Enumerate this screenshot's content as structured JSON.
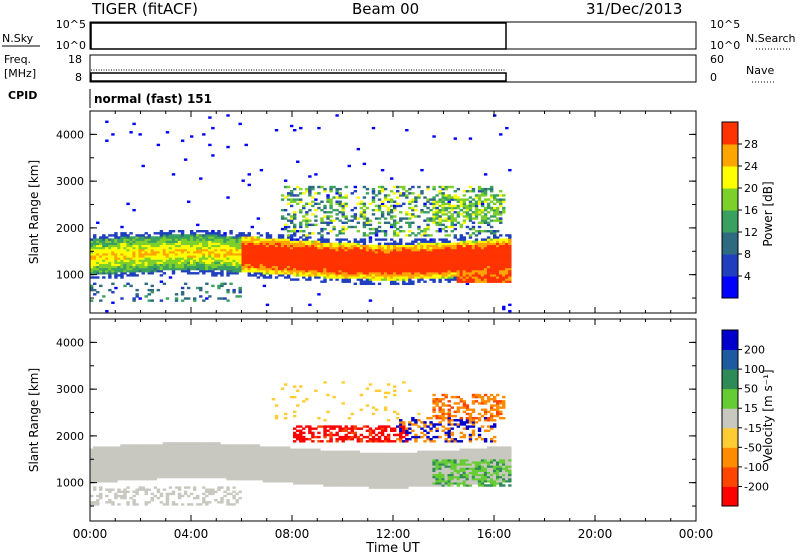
{
  "header": {
    "radar": "TIGER (fitACF)",
    "beam": "Beam 00",
    "date": "31/Dec/2013"
  },
  "panels": {
    "nsky": {
      "label": "N.Sky",
      "ticks": [
        "10^5",
        "10^0"
      ],
      "right_ticks": [
        "10^5",
        "10^0"
      ],
      "right_label": "N.Search"
    },
    "freq": {
      "label_line1": "Freq.",
      "label_line2": "[MHz]",
      "ticks": [
        "18",
        "8"
      ],
      "right_ticks": [
        "60",
        "0"
      ],
      "right_label": "Nave"
    },
    "cpid": {
      "label": "CPID",
      "value": "normal (fast) 151"
    }
  },
  "time_axis": {
    "ticks": [
      "00:00",
      "04:00",
      "08:00",
      "12:00",
      "16:00",
      "20:00",
      "00:00"
    ],
    "label": "Time UT"
  },
  "range_axis": {
    "label": "Slant Range [km]",
    "ticks": [
      "4000",
      "3000",
      "2000",
      "1000"
    ]
  },
  "colorbars": {
    "power": {
      "label": "Power [dB]",
      "ticks": [
        "28",
        "24",
        "20",
        "16",
        "12",
        "8",
        "4"
      ],
      "colors": [
        "#0000ff",
        "#1f3fbf",
        "#2e6a80",
        "#3aa060",
        "#7dcf2a",
        "#ffff00",
        "#ffa500",
        "#ff3300"
      ]
    },
    "velocity": {
      "label": "Velocity [m s⁻¹]",
      "ticks": [
        "200",
        "100",
        "50",
        "15",
        "-15",
        "-50",
        "-100",
        "-200"
      ],
      "colors": [
        "#ff0000",
        "#ff4500",
        "#ff8c00",
        "#ffcc33",
        "#c8c8c0",
        "#66cc33",
        "#2e8b57",
        "#1e5aa0",
        "#0000cc"
      ]
    }
  },
  "chart_data": [
    {
      "type": "heatmap",
      "title": "Power",
      "xlabel": "Time UT",
      "ylabel": "Slant Range [km]",
      "xlim": [
        "00:00",
        "24:00"
      ],
      "ylim": [
        180,
        4500
      ],
      "colorbar": {
        "label": "Power [dB]",
        "range": [
          0,
          30
        ]
      },
      "data_time_range": [
        "00:00",
        "16:40"
      ],
      "features": [
        {
          "region": "band",
          "x": [
            "00:00",
            "16:40"
          ],
          "range_km": [
            900,
            1800
          ],
          "power_db": [
            6,
            28
          ]
        },
        {
          "region": "upper patch",
          "x": [
            "07:30",
            "16:20"
          ],
          "range_km": [
            1800,
            2900
          ],
          "power_db": [
            4,
            20
          ]
        },
        {
          "region": "late intense echo",
          "x": [
            "14:30",
            "16:40"
          ],
          "range_km": [
            800,
            1200
          ],
          "power_db": [
            20,
            30
          ]
        }
      ]
    },
    {
      "type": "heatmap",
      "title": "Velocity",
      "xlabel": "Time UT",
      "ylabel": "Slant Range [km]",
      "xlim": [
        "00:00",
        "24:00"
      ],
      "ylim": [
        180,
        4500
      ],
      "colorbar": {
        "label": "Velocity [m s⁻¹]",
        "range": [
          -250,
          250
        ]
      },
      "data_time_range": [
        "00:00",
        "16:40"
      ],
      "features": [
        {
          "region": "ground scatter",
          "x": [
            "00:00",
            "16:00"
          ],
          "range_km": [
            600,
            1800
          ],
          "velocity": [
            -15,
            15
          ]
        },
        {
          "region": "negative velocity",
          "x": [
            "08:00",
            "12:30"
          ],
          "range_km": [
            1800,
            2200
          ],
          "velocity": [
            -250,
            -100
          ]
        },
        {
          "region": "positive velocity",
          "x": [
            "13:00",
            "16:00"
          ],
          "range_km": [
            1000,
            1600
          ],
          "velocity": [
            50,
            100
          ]
        }
      ]
    }
  ]
}
